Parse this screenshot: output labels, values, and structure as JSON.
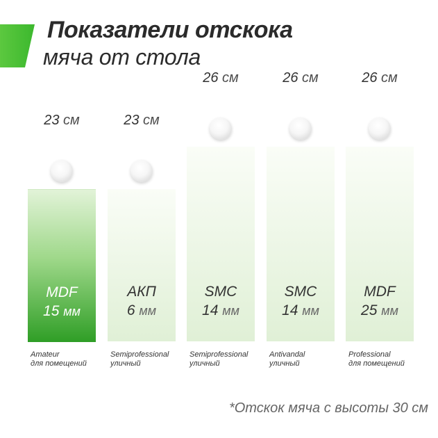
{
  "colors": {
    "accent": "#3cb82e",
    "highlight_bar_top": "#e2f3d8",
    "highlight_bar_bottom": "#2f9e26",
    "bar_top": "#fafdf7",
    "bar_bottom": "#e0f0d6",
    "label_dark": "#333333",
    "label_light": "#ffffff"
  },
  "title": {
    "line1": "Показатели отскока",
    "line2": "мяча от стола"
  },
  "footnote": "*Отскок мяча с высоты 30 см",
  "chart_data": {
    "type": "bar",
    "unit": "см",
    "categories": [
      "Amateur",
      "Semiprofessional",
      "Semiprofessional",
      "Antivandal",
      "Professional"
    ],
    "values": [
      23,
      23,
      26,
      26,
      26
    ],
    "bars": [
      {
        "value_text": "23",
        "unit": "см",
        "material": "MDF",
        "thickness": "15",
        "thickness_unit": "мм",
        "caption1": "Amateur",
        "caption2": "для помещений",
        "highlight": true
      },
      {
        "value_text": "23",
        "unit": "см",
        "material": "АКП",
        "thickness": "6",
        "thickness_unit": "мм",
        "caption1": "Semiprofessional",
        "caption2": "уличный",
        "highlight": false
      },
      {
        "value_text": "26",
        "unit": "см",
        "material": "SMC",
        "thickness": "14",
        "thickness_unit": "мм",
        "caption1": "Semiprofessional",
        "caption2": "уличный",
        "highlight": false
      },
      {
        "value_text": "26",
        "unit": "см",
        "material": "SMC",
        "thickness": "14",
        "thickness_unit": "мм",
        "caption1": "Antivandal",
        "caption2": "уличный",
        "highlight": false
      },
      {
        "value_text": "26",
        "unit": "см",
        "material": "MDF",
        "thickness": "25",
        "thickness_unit": "мм",
        "caption1": "Professional",
        "caption2": "для помещений",
        "highlight": false
      }
    ]
  }
}
